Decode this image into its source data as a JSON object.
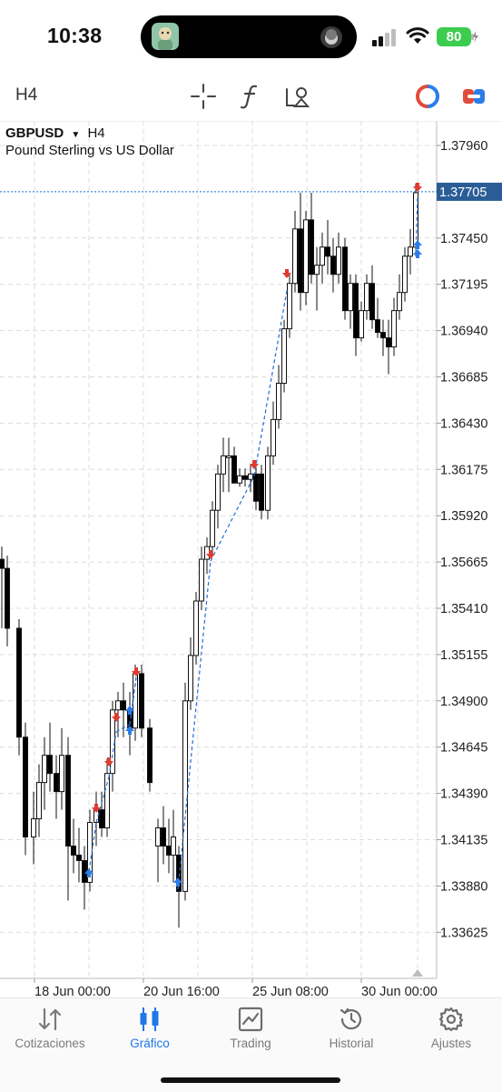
{
  "status_bar": {
    "time": "10:38",
    "battery": "80"
  },
  "toolbar": {
    "timeframe": "H4",
    "icons": [
      "crosshair-icon",
      "function-icon",
      "objects-icon",
      "trade-circle-icon",
      "toggle-icon"
    ]
  },
  "chart": {
    "symbol": "GBPUSD",
    "timeframe": "H4",
    "description": "Pound Sterling vs US Dollar",
    "current_price": "1.37705",
    "price_labels": [
      "1.37960",
      "1.37705",
      "1.37450",
      "1.37195",
      "1.36940",
      "1.36685",
      "1.36430",
      "1.36175",
      "1.35920",
      "1.35665",
      "1.35410",
      "1.35155",
      "1.34900",
      "1.34645",
      "1.34390",
      "1.34135",
      "1.33880",
      "1.33625"
    ],
    "time_labels": [
      "18 Jun 00:00",
      "20 Jun 16:00",
      "25 Jun 08:00",
      "30 Jun 00:00"
    ],
    "colors": {
      "grid": "#dcdcdc",
      "bear": "#000000",
      "bull": "#ffffff",
      "price_line": "#1f6fd8",
      "price_tag": "#2a5d96",
      "sell_arrow": "#e03b30",
      "buy_arrow": "#2b7de9"
    }
  },
  "tabs": [
    {
      "label": "Cotizaciones",
      "icon": "quotes-icon",
      "active": false
    },
    {
      "label": "Gráfico",
      "icon": "chart-icon",
      "active": true
    },
    {
      "label": "Trading",
      "icon": "trading-icon",
      "active": false
    },
    {
      "label": "Historial",
      "icon": "history-icon",
      "active": false
    },
    {
      "label": "Ajustes",
      "icon": "settings-icon",
      "active": false
    }
  ]
}
